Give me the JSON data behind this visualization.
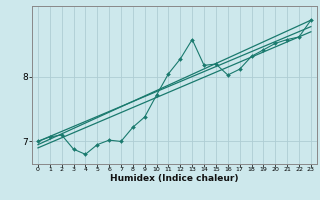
{
  "xlabel": "Humidex (Indice chaleur)",
  "ylabel": "",
  "bg_color": "#cde8ec",
  "line_color": "#1a7a6e",
  "grid_color": "#aecdd4",
  "axis_color": "#888888",
  "xlim": [
    -0.5,
    23.5
  ],
  "ylim": [
    6.65,
    9.1
  ],
  "yticks": [
    7,
    8
  ],
  "xticks": [
    0,
    1,
    2,
    3,
    4,
    5,
    6,
    7,
    8,
    9,
    10,
    11,
    12,
    13,
    14,
    15,
    16,
    17,
    18,
    19,
    20,
    21,
    22,
    23
  ],
  "data_x": [
    0,
    1,
    2,
    3,
    4,
    5,
    6,
    7,
    8,
    9,
    10,
    11,
    12,
    13,
    14,
    15,
    16,
    17,
    18,
    19,
    20,
    21,
    22,
    23
  ],
  "data_y": [
    7.0,
    7.07,
    7.1,
    6.88,
    6.8,
    6.95,
    7.02,
    7.0,
    7.22,
    7.38,
    7.72,
    8.05,
    8.28,
    8.58,
    8.18,
    8.2,
    8.03,
    8.12,
    8.32,
    8.42,
    8.52,
    8.58,
    8.62,
    8.88
  ],
  "trend1_x": [
    0,
    23
  ],
  "trend1_y": [
    6.95,
    8.88
  ],
  "trend2_x": [
    0,
    23
  ],
  "trend2_y": [
    7.0,
    8.78
  ],
  "trend3_x": [
    0,
    23
  ],
  "trend3_y": [
    6.9,
    8.7
  ]
}
